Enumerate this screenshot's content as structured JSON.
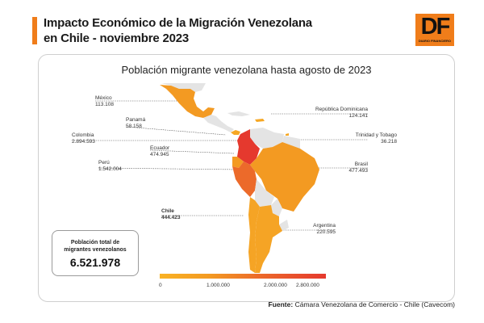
{
  "header": {
    "title_line1": "Impacto Económico de la Migración Venezolana",
    "title_line2": "en Chile - noviembre 2023",
    "logo_text": "DF",
    "logo_sub": "DIARIO FINANCIERO"
  },
  "map": {
    "title": "Población migrante venezolana hasta agosto de 2023",
    "countries": [
      {
        "name": "México",
        "value": "113.108"
      },
      {
        "name": "Panamá",
        "value": "58.158"
      },
      {
        "name": "Colombia",
        "value": "2.894.593"
      },
      {
        "name": "Ecuador",
        "value": "474.945"
      },
      {
        "name": "Perú",
        "value": "1.542.004"
      },
      {
        "name": "Chile",
        "value": "444.423"
      },
      {
        "name": "República Dominicana",
        "value": "124.141"
      },
      {
        "name": "Trinidad y Tobago",
        "value": "36.218"
      },
      {
        "name": "Brasil",
        "value": "477.493"
      },
      {
        "name": "Argentina",
        "value": "220.595"
      }
    ],
    "legend_ticks": [
      "0",
      "1.000.000",
      "2.000.000",
      "2.800.000"
    ],
    "colors": {
      "low": "#f9b224",
      "mid": "#ec7a2a",
      "high": "#e5392e",
      "no_data": "#e4e4e4",
      "accent": "#f07d1a"
    }
  },
  "total": {
    "label_line1": "Población total de",
    "label_line2": "migrantes venezolanos",
    "value": "6.521.978"
  },
  "source": {
    "label": "Fuente:",
    "text": "Cámara Venezolana de Comercio - Chile (Cavecom)"
  }
}
